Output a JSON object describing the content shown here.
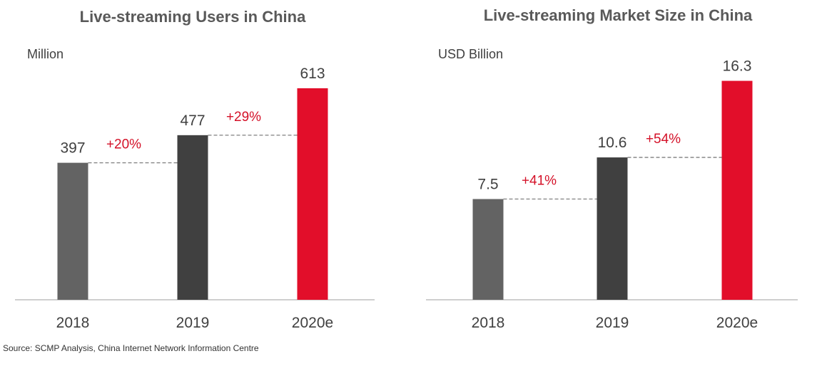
{
  "colors": {
    "bar_2018": "#636363",
    "bar_2019": "#404040",
    "bar_2020": "#e20e2a",
    "growth_text": "#d41128",
    "title_text": "#595959",
    "label_text": "#404040",
    "axis": "#bfbfbf",
    "dashed": "#7f7f7f"
  },
  "source": "Source: SCMP Analysis, China Internet Network Information Centre",
  "chart_data": [
    {
      "type": "bar",
      "title": "Live-streaming Users in China",
      "unit_label": "Million",
      "categories": [
        "2018",
        "2019",
        "2020e"
      ],
      "values": [
        397,
        477,
        613
      ],
      "value_labels": [
        "397",
        "477",
        "613"
      ],
      "growth_labels": [
        "+20%",
        "+29%"
      ],
      "ylim": [
        0,
        650
      ],
      "grid": false
    },
    {
      "type": "bar",
      "title": "Live-streaming Market Size in China",
      "unit_label": "USD Billion",
      "categories": [
        "2018",
        "2019",
        "2020e"
      ],
      "values": [
        7.5,
        10.6,
        16.3
      ],
      "value_labels": [
        "7.5",
        "10.6",
        "16.3"
      ],
      "growth_labels": [
        "+41%",
        "+54%"
      ],
      "ylim": [
        0,
        16.7
      ],
      "grid": false
    }
  ]
}
